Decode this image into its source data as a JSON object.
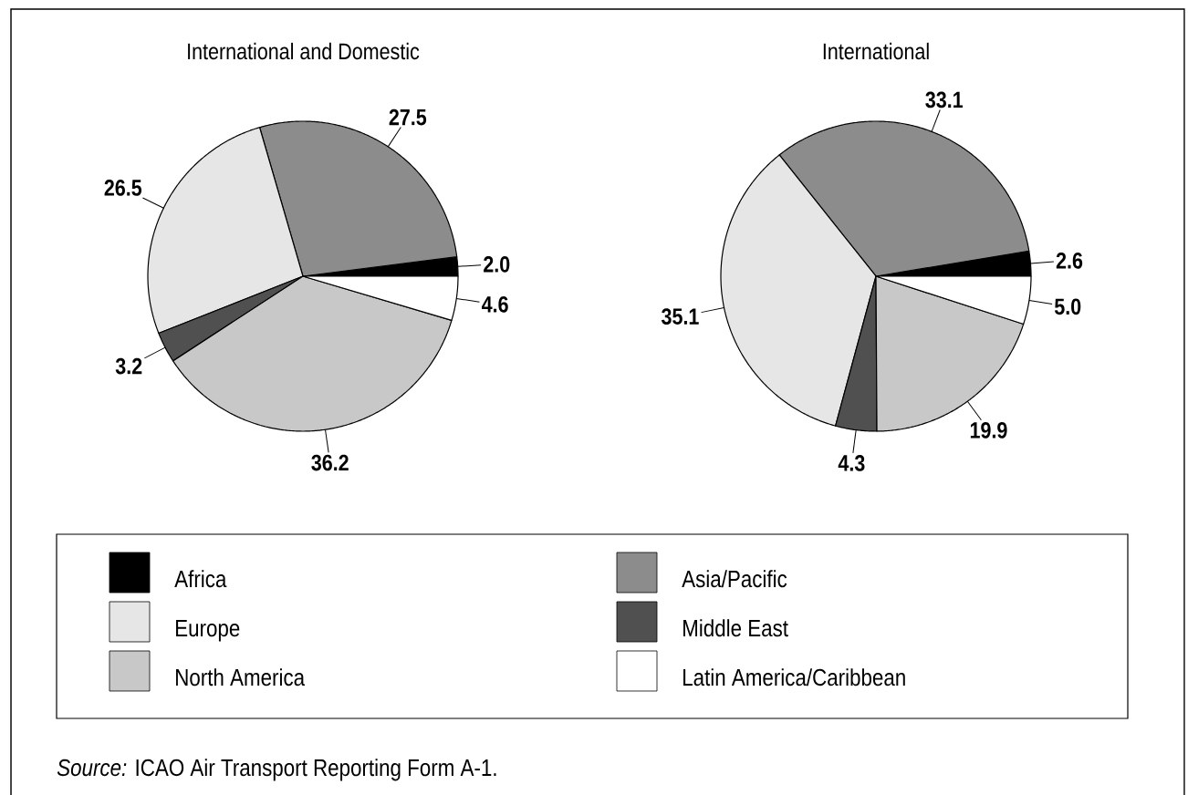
{
  "chart_data": {
    "type": "pie",
    "categories": [
      "Africa",
      "Asia/Pacific",
      "Europe",
      "Middle East",
      "North America",
      "Latin America/Caribbean"
    ],
    "colors": [
      "#000000",
      "#8c8c8c",
      "#e6e6e6",
      "#505050",
      "#c8c8c8",
      "#ffffff"
    ],
    "series": [
      {
        "name": "International and Domestic",
        "values": [
          2.0,
          27.5,
          26.5,
          3.2,
          36.2,
          4.6
        ],
        "value_labels": [
          "2.0",
          "27.5",
          "26.5",
          "3.2",
          "36.2",
          "4.6"
        ]
      },
      {
        "name": "International",
        "values": [
          2.6,
          33.1,
          35.1,
          4.3,
          19.9,
          5.0
        ],
        "value_labels": [
          "2.6",
          "33.1",
          "35.1",
          "4.3",
          "19.9",
          "5.0"
        ]
      }
    ],
    "legend": "bottom",
    "annotations": [
      "*Source:* ICAO Air Transport Reporting Form A-1."
    ]
  }
}
